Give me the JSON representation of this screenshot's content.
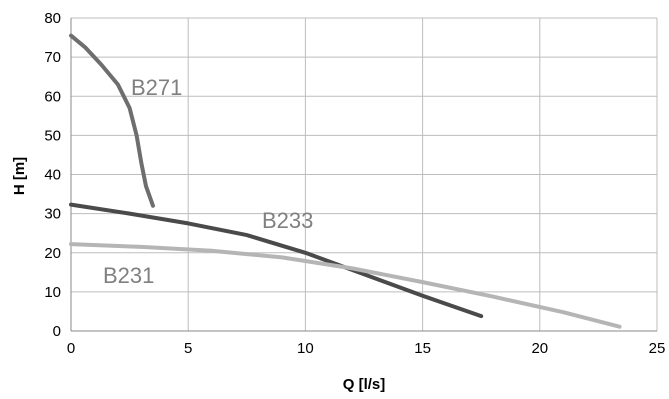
{
  "chart_data": {
    "type": "line",
    "xlabel": "Q [l/s]",
    "ylabel": "H [m]",
    "xlim": [
      0,
      25
    ],
    "ylim": [
      0,
      80
    ],
    "x_ticks": [
      "0",
      "5",
      "10",
      "15",
      "20",
      "25"
    ],
    "y_ticks": [
      "0",
      "10",
      "20",
      "30",
      "40",
      "50",
      "60",
      "70",
      "80"
    ],
    "grid": true,
    "legend": "none",
    "series": [
      {
        "name": "B271",
        "color": "#6e6e6e",
        "x": [
          0,
          0.6,
          1.3,
          2.0,
          2.5,
          2.8,
          3.0,
          3.2,
          3.5
        ],
        "y": [
          75.5,
          72.5,
          68.0,
          63.0,
          57.0,
          50.0,
          43.0,
          37.0,
          32.0
        ]
      },
      {
        "name": "B233",
        "color": "#4a4a4a",
        "x": [
          0,
          2.5,
          5.0,
          7.5,
          10.0,
          12.5,
          15.0,
          17.5
        ],
        "y": [
          32.3,
          30.0,
          27.5,
          24.5,
          20.0,
          14.5,
          9.0,
          3.8
        ]
      },
      {
        "name": "B231",
        "color": "#b5b5b5",
        "x": [
          0,
          3.0,
          6.0,
          9.0,
          12.0,
          15.0,
          18.0,
          21.0,
          23.4
        ],
        "y": [
          22.2,
          21.5,
          20.5,
          18.8,
          16.0,
          12.5,
          8.8,
          4.8,
          1.1
        ]
      }
    ]
  }
}
